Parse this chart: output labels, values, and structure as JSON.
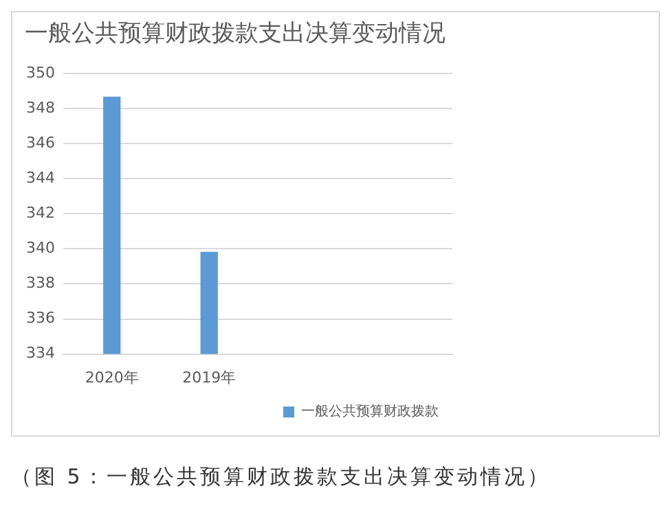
{
  "chart_data": {
    "type": "bar",
    "title": "一般公共预算财政拨款支出决算变动情况",
    "categories": [
      "2020年",
      "2019年",
      null,
      null
    ],
    "series": [
      {
        "name": "一般公共预算财政拨款",
        "color": "#5b9bd5",
        "values": [
          348.65,
          339.8,
          null,
          null
        ]
      }
    ],
    "ylim": [
      334,
      350
    ],
    "yticks": [
      334,
      336,
      338,
      340,
      342,
      344,
      346,
      348,
      350
    ],
    "grid": "y",
    "legend": "bottom right",
    "annotations": [
      "（图 5：一般公共预算财政拨款支出决算变动情况）"
    ]
  }
}
